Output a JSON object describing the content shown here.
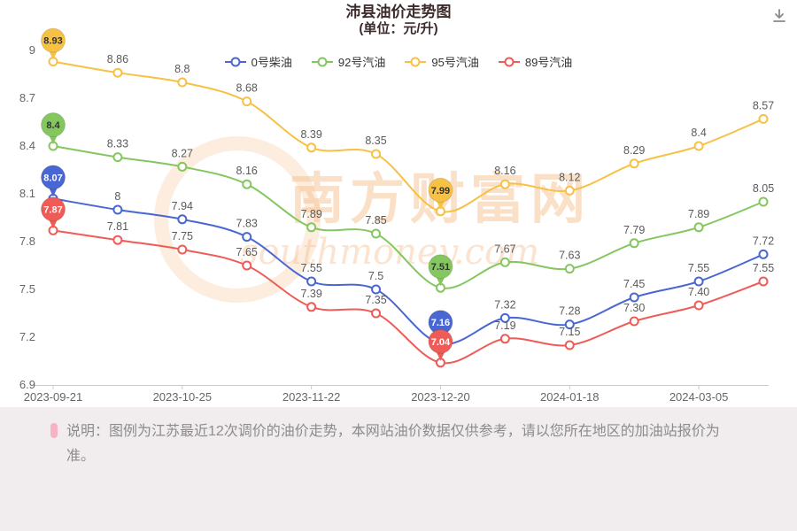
{
  "title": "沛县油价走势图",
  "subtitle": "(单位：元/升)",
  "watermark": {
    "line1": "南方财富网",
    "line2": "southmoney.com"
  },
  "note": "说明：图例为江苏最近12次调价的油价走势，本网站油价数据仅供参考，请以您所在地区的加油站报价为准。",
  "colors": {
    "axis_line": "#cccccc",
    "axis_text": "#666666",
    "point_label": "#5a5a5a",
    "watermark": "rgba(247,186,133,0.45)"
  },
  "chart_data": {
    "type": "line",
    "title": "沛县油价走势图 (单位：元/升)",
    "x_labels": [
      "2023-09-21",
      "2023-10-25",
      "2023-11-22",
      "2023-12-20",
      "2024-01-18",
      "2024-03-05"
    ],
    "x_label_indices": [
      0,
      2,
      4,
      6,
      8,
      10
    ],
    "n_points": 12,
    "y_ticks": [
      "6.9",
      "7.2",
      "7.5",
      "7.8",
      "8.1",
      "8.4",
      "8.7",
      "9"
    ],
    "ylim": [
      6.9,
      9.0
    ],
    "grid": false,
    "legend_position": "top",
    "balloon_indices": [
      0,
      6
    ],
    "series": [
      {
        "name": "0号柴油",
        "color": "#4967d2",
        "label_text_color": "#ffffff",
        "values": [
          8.07,
          8,
          7.94,
          7.83,
          7.55,
          7.5,
          7.16,
          7.32,
          7.28,
          7.45,
          7.55,
          7.72
        ],
        "labels": [
          "8.07",
          "8",
          "7.94",
          "7.83",
          "7.55",
          "7.5",
          "7.16",
          "7.32",
          "7.28",
          "7.45",
          "7.55",
          "7.72"
        ]
      },
      {
        "name": "92号汽油",
        "color": "#84c75f",
        "label_text_color": "#333333",
        "values": [
          8.4,
          8.33,
          8.27,
          8.16,
          7.89,
          7.85,
          7.51,
          7.67,
          7.63,
          7.79,
          7.89,
          8.05
        ],
        "labels": [
          "8.4",
          "8.33",
          "8.27",
          "8.16",
          "7.89",
          "7.85",
          "7.51",
          "7.67",
          "7.63",
          "7.79",
          "7.89",
          "8.05"
        ]
      },
      {
        "name": "95号汽油",
        "color": "#f7c143",
        "label_text_color": "#333333",
        "values": [
          8.93,
          8.86,
          8.8,
          8.68,
          8.39,
          8.35,
          7.99,
          8.16,
          8.12,
          8.29,
          8.4,
          8.57
        ],
        "labels": [
          "8.93",
          "8.86",
          "8.8",
          "8.68",
          "8.39",
          "8.35",
          "7.99",
          "8.16",
          "8.12",
          "8.29",
          "8.4",
          "8.57"
        ]
      },
      {
        "name": "89号汽油",
        "color": "#ef5b56",
        "label_text_color": "#ffffff",
        "values": [
          7.87,
          7.81,
          7.75,
          7.65,
          7.39,
          7.35,
          7.04,
          7.19,
          7.15,
          7.3,
          7.4,
          7.55
        ],
        "labels": [
          "7.87",
          "7.81",
          "7.75",
          "7.65",
          "7.39",
          "7.35",
          "7.04",
          "7.19",
          "7.15",
          "7.30",
          "7.40",
          "7.55"
        ]
      }
    ]
  }
}
